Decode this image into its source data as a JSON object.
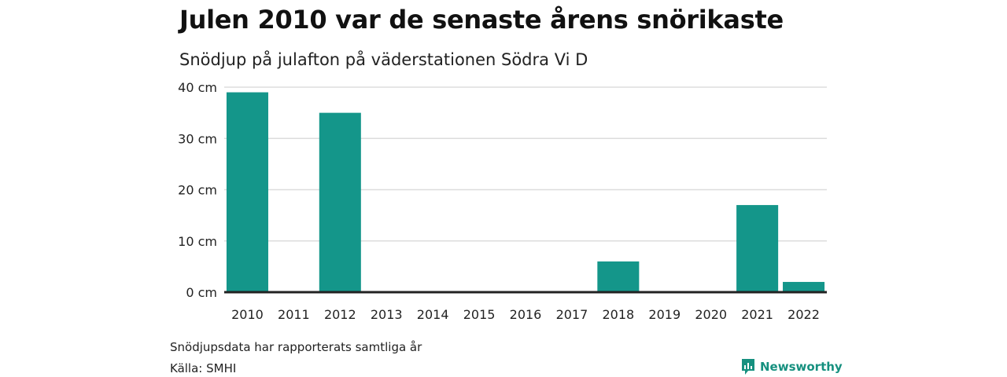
{
  "title": "Julen 2010 var de senaste årens snörikaste",
  "subtitle": "Snödjup på julafton på väderstationen Södra Vi D",
  "footnote": "Snödjupsdata har rapporterats samtliga år",
  "source": "Källa: SMHI",
  "brand": "Newsworthy",
  "colors": {
    "bar": "#14968a",
    "grid": "#dddddd",
    "axis": "#222222",
    "brand": "#16907f"
  },
  "chart_data": {
    "type": "bar",
    "title": "Julen 2010 var de senaste årens snörikaste",
    "subtitle": "Snödjup på julafton på väderstationen Södra Vi D",
    "categories": [
      "2010",
      "2011",
      "2012",
      "2013",
      "2014",
      "2015",
      "2016",
      "2017",
      "2018",
      "2019",
      "2020",
      "2021",
      "2022"
    ],
    "values": [
      39,
      0,
      35,
      0,
      0,
      0,
      0,
      0,
      6,
      0,
      0,
      17,
      2
    ],
    "y_ticks": [
      "0 cm",
      "10 cm",
      "20 cm",
      "30 cm",
      "40 cm"
    ],
    "ylim": [
      0,
      40
    ],
    "unit": "cm",
    "grid": true
  }
}
